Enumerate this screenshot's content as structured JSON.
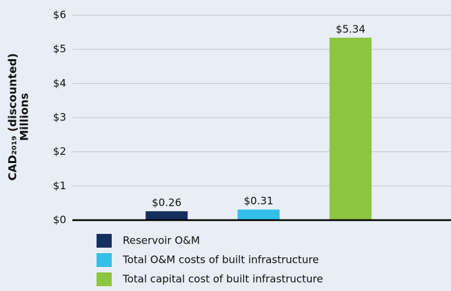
{
  "chart_data": {
    "type": "bar",
    "y_label": [
      "CAD₂₀₁₉ (discounted)",
      "Millions"
    ],
    "categories": [
      "Reservoir O&M",
      "Total O&M costs of built infrastructure",
      "Total capital cost of built infrastructure"
    ],
    "values": [
      0.26,
      0.31,
      5.34
    ],
    "value_labels": [
      "$0.26",
      "$0.31",
      "$5.34"
    ],
    "colors": [
      "#14305f",
      "#33bfea",
      "#8cc540"
    ],
    "ylim": [
      0,
      6
    ],
    "yticks": [
      {
        "value": 0,
        "label": "$0"
      },
      {
        "value": 1,
        "label": "$1"
      },
      {
        "value": 2,
        "label": "$2"
      },
      {
        "value": 3,
        "label": "$3"
      },
      {
        "value": 4,
        "label": "$4"
      },
      {
        "value": 5,
        "label": "$5"
      },
      {
        "value": 6,
        "label": "$6"
      }
    ],
    "grid": true
  }
}
